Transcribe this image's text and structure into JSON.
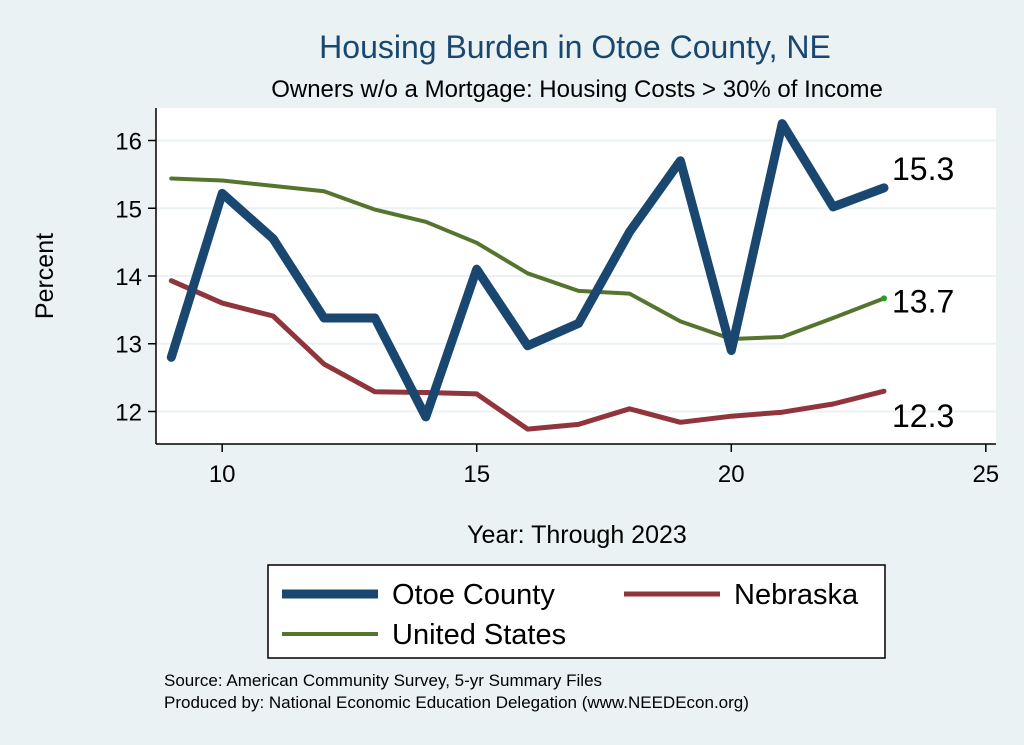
{
  "chart_data": {
    "type": "line",
    "title": "Housing Burden in Otoe County, NE",
    "subtitle": "Owners w/o a Mortgage: Housing Costs > 30% of Income",
    "xlabel": "Year: Through 2023",
    "ylabel": "Percent",
    "xlim": [
      8.7,
      25.2
    ],
    "ylim": [
      11.52,
      16.48
    ],
    "xticks": [
      10,
      15,
      20,
      25
    ],
    "yticks": [
      12,
      13,
      14,
      15,
      16
    ],
    "grid": true,
    "legend_position": "bottom",
    "x": [
      9,
      10,
      11,
      12,
      13,
      14,
      15,
      16,
      17,
      18,
      19,
      20,
      21,
      22,
      23
    ],
    "series": [
      {
        "name": "Otoe County",
        "color": "#1a476f",
        "values": [
          12.8,
          15.22,
          14.55,
          13.38,
          13.38,
          11.92,
          14.1,
          12.97,
          13.3,
          14.65,
          15.7,
          12.9,
          16.25,
          15.02,
          15.3
        ]
      },
      {
        "name": "Nebraska",
        "color": "#90353b",
        "values": [
          13.93,
          13.6,
          13.41,
          12.7,
          12.29,
          12.28,
          12.26,
          11.74,
          11.81,
          12.04,
          11.84,
          11.93,
          11.99,
          12.11,
          12.3
        ]
      },
      {
        "name": "United States",
        "color": "#55752f",
        "values": [
          15.44,
          15.41,
          15.33,
          15.25,
          14.98,
          14.8,
          14.49,
          14.04,
          13.78,
          13.74,
          13.33,
          13.07,
          13.1,
          13.38,
          13.67
        ]
      }
    ],
    "end_labels": [
      "15.3",
      "13.7",
      "12.3"
    ]
  },
  "footer": {
    "source": "Source: American Community Survey, 5-yr Summary Files",
    "produced_by": "Produced by: National Economic Education Delegation (www.NEEDEcon.org)"
  }
}
